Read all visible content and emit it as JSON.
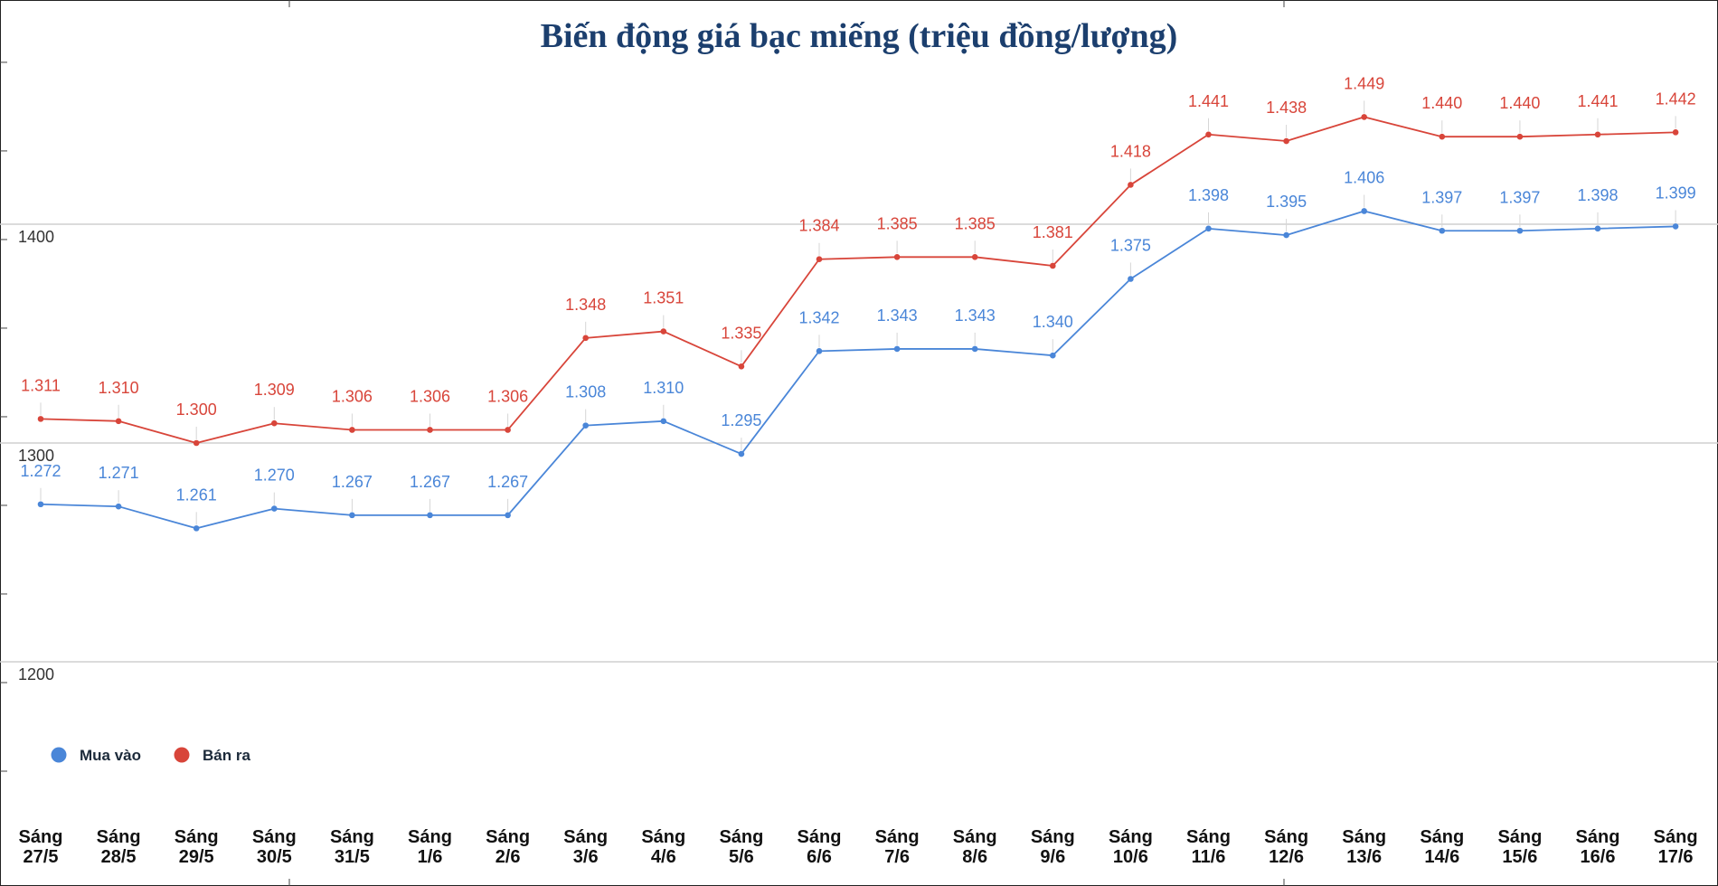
{
  "chart_data": {
    "type": "line",
    "title": "Biến động giá bạc miếng (triệu đồng/lượng)",
    "categories": [
      "Sáng 27/5",
      "Sáng 28/5",
      "Sáng 29/5",
      "Sáng 30/5",
      "Sáng 31/5",
      "Sáng 1/6",
      "Sáng 2/6",
      "Sáng 3/6",
      "Sáng 4/6",
      "Sáng 5/6",
      "Sáng 6/6",
      "Sáng 7/6",
      "Sáng 8/6",
      "Sáng 9/6",
      "Sáng 10/6",
      "Sáng 11/6",
      "Sáng 12/6",
      "Sáng 13/6",
      "Sáng 14/6",
      "Sáng 15/6",
      "Sáng 16/6",
      "Sáng 17/6"
    ],
    "series": [
      {
        "name": "Mua vào",
        "color": "#4a86d8",
        "values": [
          1272,
          1271,
          1261,
          1270,
          1267,
          1267,
          1267,
          1308,
          1310,
          1295,
          1342,
          1343,
          1343,
          1340,
          1375,
          1398,
          1395,
          1406,
          1397,
          1397,
          1398,
          1399
        ],
        "labels": [
          "1.272",
          "1.271",
          "1.261",
          "1.270",
          "1.267",
          "1.267",
          "1.267",
          "1.308",
          "1.310",
          "1.295",
          "1.342",
          "1.343",
          "1.343",
          "1.340",
          "1.375",
          "1.398",
          "1.395",
          "1.406",
          "1.397",
          "1.397",
          "1.398",
          "1.399"
        ]
      },
      {
        "name": "Bán ra",
        "color": "#d8453a",
        "values": [
          1311,
          1310,
          1300,
          1309,
          1306,
          1306,
          1306,
          1348,
          1351,
          1335,
          1384,
          1385,
          1385,
          1381,
          1418,
          1441,
          1438,
          1449,
          1440,
          1440,
          1441,
          1442
        ],
        "labels": [
          "1.311",
          "1.310",
          "1.300",
          "1.309",
          "1.306",
          "1.306",
          "1.306",
          "1.348",
          "1.351",
          "1.335",
          "1.384",
          "1.385",
          "1.385",
          "1.381",
          "1.418",
          "1.441",
          "1.438",
          "1.449",
          "1.440",
          "1.440",
          "1.441",
          "1.442"
        ]
      }
    ],
    "yticks": [
      1200,
      1300,
      1400
    ],
    "ylim": [
      1135,
      1500
    ],
    "grid": true,
    "legend_position": "bottom-left"
  }
}
